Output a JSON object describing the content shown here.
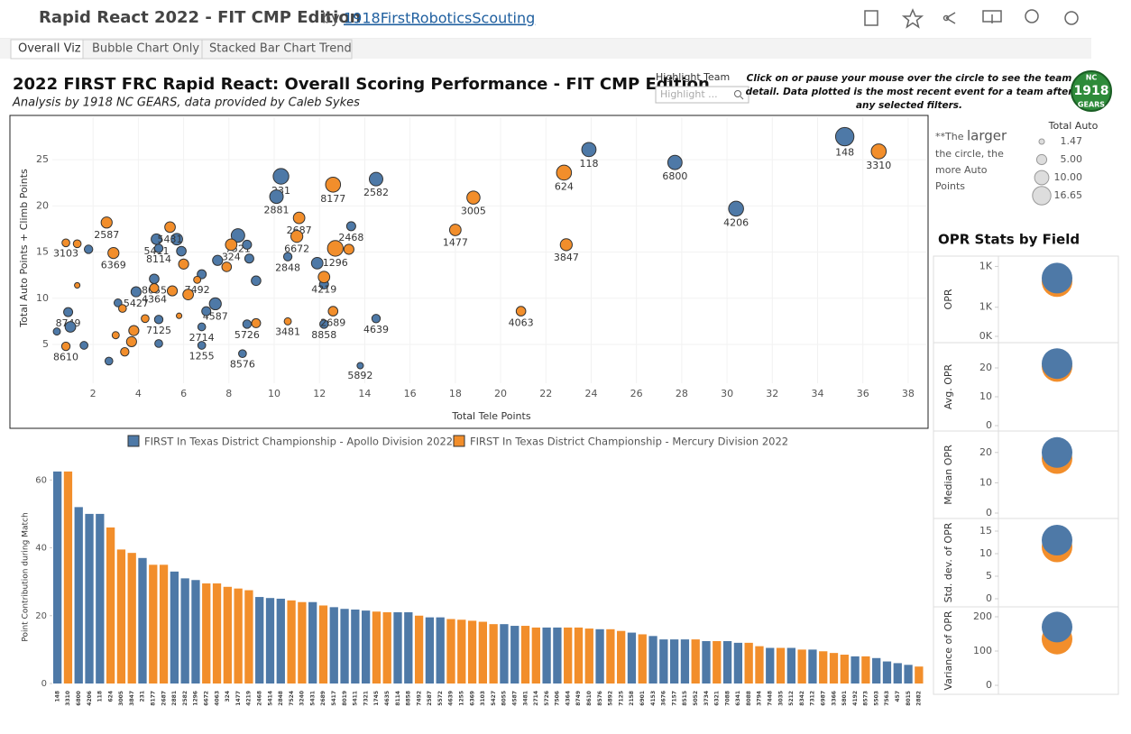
{
  "header": {
    "title": "Rapid React 2022 - FIT CMP Edition",
    "by": "by",
    "author": "1918FirstRoboticsScouting"
  },
  "tabs": [
    "Overall Viz",
    "Bubble Chart Only",
    "Stacked Bar Chart Trend"
  ],
  "dashboard": {
    "title": "2022 FIRST FRC Rapid React: Overall Scoring Performance - FIT CMP Edition",
    "subtitle": "Analysis by 1918 NC GEARS, data provided by Caleb Sykes",
    "highlight_label": "Highlight Team",
    "highlight_placeholder": "Highlight ...",
    "instructions": [
      "Click on or pause your mouse over the circle to see the team",
      "detail.  Data plotted is the most recent event for a team after",
      "any selected filters."
    ],
    "logo": [
      "NC",
      "1918",
      "GEARS"
    ],
    "size_note": [
      "**The",
      "larger",
      "the circle, the",
      "more Auto",
      "Points"
    ],
    "opr_title": "OPR Stats by Field"
  },
  "chart_data": [
    {
      "type": "scatter",
      "xlabel": "Total Tele Points",
      "ylabel": "Total Auto Points + Climb Points",
      "xlim": [
        0.2,
        38.8
      ],
      "ylim": [
        0.8,
        29.6
      ],
      "xticks": [
        2,
        4,
        6,
        8,
        10,
        12,
        14,
        16,
        18,
        20,
        22,
        24,
        26,
        28,
        30,
        32,
        34,
        36,
        38
      ],
      "yticks": [
        5,
        10,
        15,
        20,
        25
      ],
      "size_title": "Total Auto",
      "size_legend": [
        1.47,
        {
          "value": 5,
          "label": "5.00"
        },
        {
          "value": 10,
          "label": "10.00"
        },
        16.65
      ],
      "series": [
        {
          "name": "FIRST In Texas District Championship - Apollo Division 2022",
          "color": "#4e79a7",
          "x": [
            35.2,
            27.7,
            30.4,
            23.9,
            10.3,
            14.5,
            10.1,
            13.4,
            10.6,
            14.5,
            12.2,
            13.8,
            8.4,
            4.8,
            4.9,
            4.7,
            3.9,
            7.4,
            0.9,
            4.9,
            6.8,
            6.8,
            8.8,
            8.6,
            0.4,
            1.6,
            1.8,
            1.0,
            2.7,
            3.1,
            4.9,
            5.7,
            5.9,
            6.8,
            7.0,
            7.5,
            8.8,
            8.9,
            9.2,
            12.2,
            11.9
          ],
          "y": [
            27.5,
            24.7,
            19.7,
            26.1,
            23.2,
            22.9,
            21.0,
            17.8,
            14.5,
            7.8,
            7.2,
            2.7,
            16.8,
            16.4,
            15.4,
            12.1,
            10.7,
            9.4,
            8.5,
            7.7,
            6.9,
            4.9,
            7.2,
            4.0,
            6.4,
            4.9,
            15.3,
            6.9,
            3.2,
            9.5,
            5.1,
            16.4,
            15.1,
            12.6,
            8.6,
            14.1,
            15.8,
            14.3,
            11.9,
            11.5,
            13.8
          ],
          "size": [
            16.6,
            10,
            11,
            10,
            12,
            9,
            9,
            4,
            3.5,
            3.5,
            3.5,
            2,
            9,
            5.5,
            3.5,
            4.5,
            5,
            7,
            4,
            3.5,
            3,
            3,
            3.5,
            3,
            2.5,
            3,
            3.5,
            5.5,
            3,
            3,
            3,
            6.5,
            4.5,
            4,
            4,
            5,
            4,
            4,
            4.5,
            4,
            6.5
          ],
          "labels": [
            "148",
            "6800",
            "4206",
            "118",
            "231",
            "2582",
            "2881",
            "2468",
            "2848",
            "4639",
            "8858",
            "5892",
            "7521",
            "5411",
            "8114",
            "8055",
            "5427",
            "4587",
            "8749",
            "7125",
            "2714",
            "1255",
            "5726",
            "8576",
            null,
            null,
            null,
            null,
            null,
            null,
            null,
            null,
            null,
            null,
            null,
            null,
            null,
            null,
            null,
            null,
            null
          ]
        },
        {
          "name": "FIRST In Texas District Championship - Mercury Division 2022",
          "color": "#f28e2b",
          "x": [
            36.7,
            22.8,
            18.8,
            18.0,
            22.9,
            20.9,
            12.6,
            11.1,
            11.0,
            12.7,
            12.2,
            12.6,
            10.6,
            8.1,
            5.4,
            0.8,
            2.6,
            2.9,
            6.6,
            4.7,
            0.8,
            1.3,
            1.3,
            3.4,
            3.7,
            3.8,
            3.3,
            3.0,
            4.3,
            6.0,
            5.5,
            6.2,
            5.8,
            7.9,
            9.2,
            13.3
          ],
          "y": [
            25.9,
            23.6,
            20.9,
            17.4,
            15.8,
            8.6,
            22.3,
            18.7,
            16.7,
            15.4,
            12.3,
            8.6,
            7.5,
            15.8,
            17.7,
            16.0,
            18.2,
            14.9,
            12.0,
            11.1,
            4.8,
            15.9,
            11.4,
            4.2,
            5.3,
            6.5,
            8.9,
            6.0,
            7.8,
            13.7,
            10.8,
            10.4,
            8.1,
            13.4,
            7.3,
            15.3
          ],
          "size": [
            11,
            11,
            8.5,
            6.5,
            7,
            4.5,
            11,
            6.5,
            7,
            12,
            6.5,
            4.5,
            2.5,
            6.5,
            5.5,
            3,
            6,
            6,
            2.5,
            4,
            3.5,
            3,
            1.5,
            3.5,
            5,
            5,
            3,
            2.5,
            3,
            5,
            5,
            5.5,
            1.5,
            4.5,
            4,
            5
          ],
          "labels": [
            "3310",
            "624",
            "3005",
            "1477",
            "3847",
            "4063",
            "8177",
            "2687",
            "6672",
            "1296",
            "4219",
            "2689",
            "3481",
            "324",
            "5431",
            "3103",
            "2587",
            "6369",
            "7492",
            "4364",
            "8610",
            null,
            null,
            null,
            null,
            null,
            null,
            null,
            null,
            null,
            null,
            null,
            null,
            null,
            null,
            null
          ]
        }
      ]
    },
    {
      "type": "bar",
      "ylabel": "Point Contribution during Match",
      "ylim": [
        0,
        63
      ],
      "yticks": [
        0,
        20,
        40,
        60
      ],
      "categories": [
        "148",
        "3310",
        "6800",
        "4206",
        "118",
        "624",
        "3005",
        "3847",
        "231",
        "8177",
        "2687",
        "2881",
        "2582",
        "1296",
        "6672",
        "4063",
        "324",
        "1477",
        "4219",
        "2468",
        "5414",
        "2848",
        "7524",
        "3240",
        "5431",
        "2689",
        "5417",
        "8019",
        "5411",
        "7321",
        "1745",
        "4635",
        "8114",
        "8858",
        "7492",
        "2587",
        "5572",
        "4639",
        "1255",
        "6369",
        "3103",
        "5427",
        "8055",
        "4587",
        "3481",
        "2714",
        "5726",
        "7506",
        "4364",
        "8749",
        "8610",
        "8576",
        "5892",
        "7125",
        "2158",
        "6901",
        "4153",
        "3676",
        "7157",
        "8515",
        "5052",
        "3734",
        "6321",
        "7088",
        "6341",
        "8088",
        "3794",
        "7448",
        "3035",
        "5212",
        "8342",
        "7312",
        "6987",
        "3366",
        "5801",
        "4192",
        "8573",
        "5503",
        "7563",
        "457",
        "8015",
        "2882"
      ],
      "series": [
        {
          "color": "#4e79a7",
          "values": [
            62.5,
            null,
            52,
            50,
            50,
            null,
            null,
            null,
            37,
            null,
            null,
            33,
            31,
            30.5,
            null,
            null,
            null,
            null,
            null,
            25.5,
            25.2,
            25,
            null,
            null,
            24,
            null,
            22.5,
            22,
            21.8,
            21.5,
            null,
            null,
            21,
            21,
            null,
            19.5,
            19.5,
            null,
            null,
            null,
            null,
            null,
            17.5,
            17,
            null,
            null,
            16.5,
            16.5,
            null,
            null,
            null,
            16,
            null,
            null,
            15,
            null,
            14,
            13,
            13,
            13,
            null,
            12.5,
            null,
            12.5,
            12,
            null,
            null,
            10.5,
            null,
            10.5,
            null,
            10,
            null,
            null,
            null,
            8,
            null,
            7.5,
            6.5,
            6,
            5.5,
            null
          ]
        },
        {
          "color": "#f28e2b",
          "values": [
            null,
            62.5,
            null,
            null,
            null,
            46,
            39.5,
            38.5,
            null,
            35,
            35,
            null,
            null,
            null,
            29.5,
            29.5,
            28.5,
            28,
            27.5,
            null,
            null,
            null,
            24.5,
            24,
            null,
            23,
            null,
            null,
            null,
            null,
            21.2,
            21,
            null,
            null,
            20,
            null,
            null,
            19,
            18.8,
            18.5,
            18.2,
            17.5,
            null,
            null,
            17,
            16.5,
            null,
            null,
            16.5,
            16.5,
            16.2,
            null,
            16,
            15.5,
            null,
            14.5,
            null,
            null,
            null,
            null,
            13,
            null,
            12.5,
            null,
            null,
            12,
            11,
            null,
            10.5,
            null,
            10,
            null,
            9.5,
            9,
            8.5,
            null,
            8,
            null,
            null,
            null,
            null,
            5
          ]
        }
      ]
    },
    {
      "type": "dot",
      "ylabel": "OPR",
      "ylim": [
        0,
        1300
      ],
      "yticks": [
        {
          "value": 1200,
          "label": "1K"
        },
        {
          "value": 500,
          "label": "1K"
        },
        {
          "value": 0,
          "label": "0K"
        }
      ],
      "values": [
        1000,
        940
      ],
      "colors": [
        "#4e79a7",
        "#f28e2b"
      ]
    },
    {
      "type": "dot",
      "ylabel": "Avg. OPR",
      "ylim": [
        0,
        25
      ],
      "yticks": [
        0,
        10,
        20
      ],
      "values": [
        21.5,
        20.5
      ],
      "colors": [
        "#4e79a7",
        "#f28e2b"
      ]
    },
    {
      "type": "dot",
      "ylabel": "Median OPR",
      "ylim": [
        0,
        25
      ],
      "yticks": [
        0,
        10,
        20
      ],
      "values": [
        20,
        18
      ],
      "colors": [
        "#4e79a7",
        "#f28e2b"
      ]
    },
    {
      "type": "dot",
      "ylabel": "Std. dev. of OPR",
      "ylim": [
        0,
        18
      ],
      "yticks": [
        0,
        5,
        10,
        15
      ],
      "values": [
        13,
        11.5
      ],
      "colors": [
        "#4e79a7",
        "#f28e2b"
      ]
    },
    {
      "type": "dot",
      "ylabel": "Variance of OPR",
      "ylim": [
        0,
        230
      ],
      "yticks": [
        0,
        100,
        200
      ],
      "values": [
        170,
        135
      ],
      "colors": [
        "#4e79a7",
        "#f28e2b"
      ]
    }
  ]
}
